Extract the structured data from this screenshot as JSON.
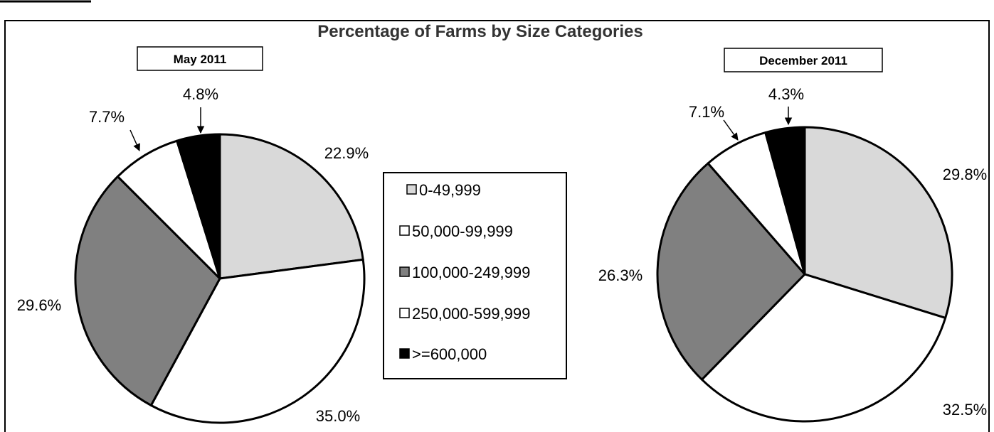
{
  "chart_data": {
    "type": "pie",
    "title": "Percentage of Farms by Size Categories",
    "categories": [
      "0-49,999",
      "50,000-99,999",
      "100,000-249,999",
      "250,000-599,999",
      ">=600,000"
    ],
    "colors": [
      "#d9d9d9",
      "#ffffff",
      "#808080",
      "#ffffff",
      "#000000"
    ],
    "legend_position": "center",
    "series": [
      {
        "name": "May 2011",
        "values": [
          22.9,
          35.0,
          29.6,
          7.7,
          4.8
        ],
        "labels": [
          "22.9%",
          "35.0%",
          "29.6%",
          "7.7%",
          "4.8%"
        ]
      },
      {
        "name": "December 2011",
        "values": [
          29.8,
          32.5,
          26.3,
          7.1,
          4.3
        ],
        "labels": [
          "29.8%",
          "32.5%",
          "26.3%",
          "7.1%",
          "4.3%"
        ]
      }
    ]
  }
}
